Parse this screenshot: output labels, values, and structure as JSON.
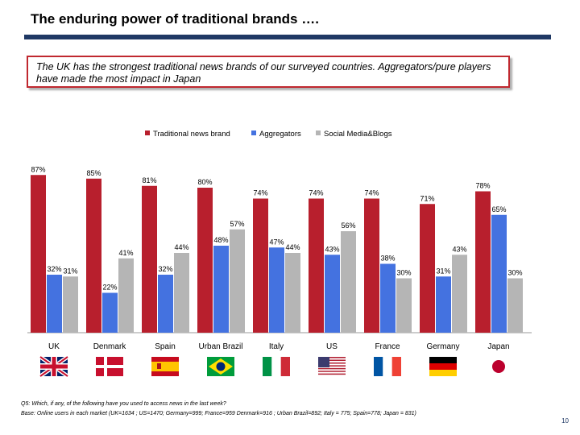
{
  "title": "The enduring power of traditional brands ….",
  "callout": "The UK has the strongest traditional news brands of our surveyed countries. Aggregators/pure players have made the most impact in Japan",
  "footnote": {
    "question": "Q5: Which, if any, of the following have you used to access news in the last week?",
    "base": "Base: Online users in each market (UK=1634 ; US=1470; Germany=999; France=959  Denmark=916 ; Urban Brazil=892; Italy = 775; Spain=778; Japan = 831)"
  },
  "page_number": "10",
  "colors": {
    "traditional": "#b81f2d",
    "aggregators": "#4472e0",
    "social": "#b5b5b5",
    "rule": "#1f3864",
    "flag_red": "#c8102e"
  },
  "chart_data": {
    "type": "bar",
    "title": "",
    "categories": [
      "UK",
      "Denmark",
      "Spain",
      "Urban Brazil",
      "Italy",
      "US",
      "France",
      "Germany",
      "Japan"
    ],
    "series": [
      {
        "name": "Traditional news brand",
        "values": [
          87,
          85,
          81,
          80,
          74,
          74,
          74,
          71,
          78
        ]
      },
      {
        "name": "Aggregators",
        "values": [
          32,
          22,
          32,
          48,
          47,
          43,
          38,
          31,
          65
        ]
      },
      {
        "name": "Social Media&Blogs",
        "values": [
          31,
          41,
          44,
          57,
          44,
          56,
          30,
          43,
          30
        ]
      }
    ],
    "value_suffix": "%",
    "ylim": [
      0,
      100
    ],
    "grid": false,
    "legend_position": "top-center",
    "flags": [
      "uk-flag",
      "denmark-flag",
      "spain-flag",
      "brazil-flag",
      "italy-flag",
      "us-flag",
      "france-flag",
      "germany-flag",
      "japan-flag"
    ]
  }
}
